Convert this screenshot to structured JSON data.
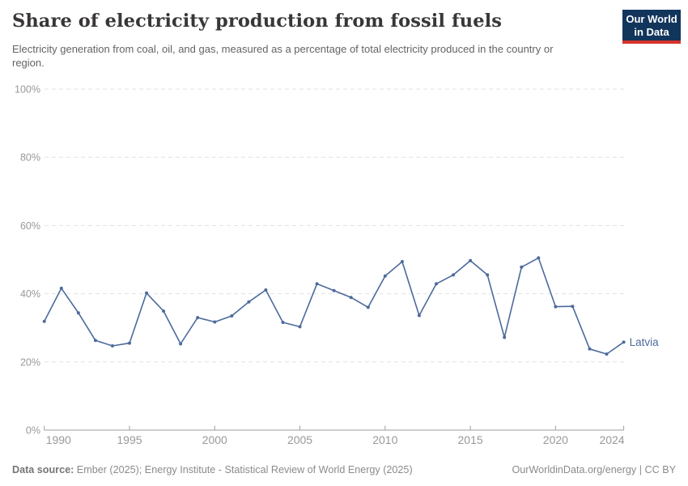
{
  "header": {
    "title": "Share of electricity production from fossil fuels",
    "subtitle": "Electricity generation from coal, oil, and gas, measured as a percentage of total electricity produced in the country or region.",
    "logo": {
      "line1": "Our World",
      "line2": "in Data",
      "bg_color": "#12355c",
      "accent_color": "#d8342c"
    }
  },
  "chart_data": {
    "type": "line",
    "title": "Share of electricity production from fossil fuels",
    "xlabel": "",
    "ylabel": "",
    "x": [
      1990,
      1991,
      1992,
      1993,
      1994,
      1995,
      1996,
      1997,
      1998,
      1999,
      2000,
      2001,
      2002,
      2003,
      2004,
      2005,
      2006,
      2007,
      2008,
      2009,
      2010,
      2011,
      2012,
      2013,
      2014,
      2015,
      2016,
      2017,
      2018,
      2019,
      2020,
      2021,
      2022,
      2023,
      2024
    ],
    "series": [
      {
        "name": "Latvia",
        "color": "#4c6a9c",
        "values": [
          31.9,
          41.6,
          34.4,
          26.3,
          24.7,
          25.5,
          40.2,
          34.9,
          25.3,
          33.0,
          31.7,
          33.5,
          37.6,
          41.1,
          31.6,
          30.3,
          42.9,
          40.9,
          38.9,
          36.0,
          45.2,
          49.4,
          33.6,
          42.9,
          45.5,
          49.7,
          45.5,
          27.2,
          47.8,
          50.5,
          36.2,
          36.3,
          23.8,
          22.3,
          25.8
        ]
      }
    ],
    "ylim": [
      0,
      100
    ],
    "yticks": [
      0,
      20,
      40,
      60,
      80,
      100
    ],
    "ytick_labels": [
      "0%",
      "20%",
      "40%",
      "60%",
      "80%",
      "100%"
    ],
    "xticks": [
      1990,
      1995,
      2000,
      2005,
      2010,
      2015,
      2020,
      2024
    ],
    "xtick_labels": [
      "1990",
      "1995",
      "2000",
      "2005",
      "2010",
      "2015",
      "2020",
      "2024"
    ],
    "grid": "horizontal-dashed",
    "legend_position": "end-of-line-label"
  },
  "colors": {
    "line": "#4c6a9c",
    "gridline": "#e2e2e2",
    "axis": "#9e9e9e",
    "tick_label": "#999999",
    "entity_label": "#4c6a9c"
  },
  "footer": {
    "source_label": "Data source:",
    "source_text": "Ember (2025); Energy Institute - Statistical Review of World Energy (2025)",
    "credit": "OurWorldinData.org/energy | CC BY"
  }
}
